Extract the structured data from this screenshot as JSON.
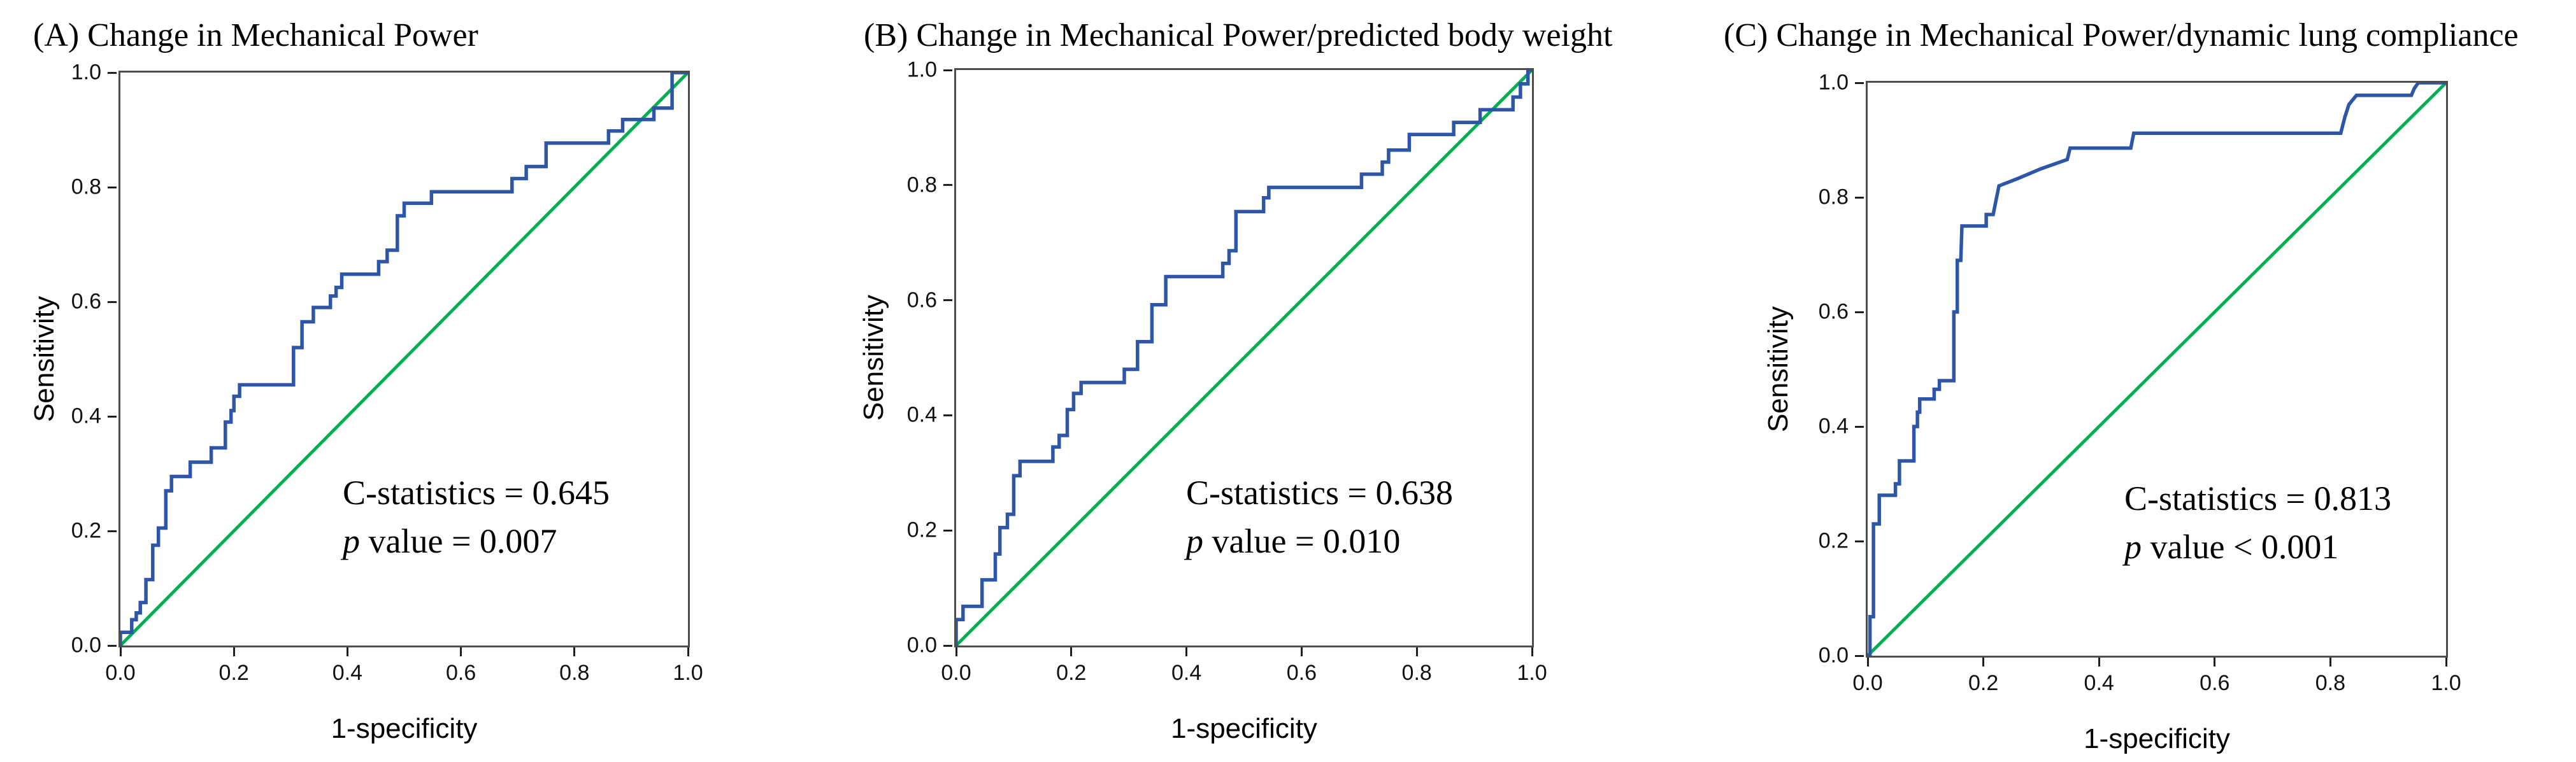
{
  "figure": {
    "description": "Three ROC curve panels comparing change in mechanical power metrics",
    "background": "#ffffff"
  },
  "colors": {
    "roc_curve": "#2e56a8",
    "reference_line": "#00b050",
    "plot_border": "#4d4d4d",
    "text": "#000000"
  },
  "chart_data": [
    {
      "type": "line",
      "panel": "A",
      "title": "(A) Change in Mechanical Power",
      "xlabel": "1-specificity",
      "ylabel": "Sensitivity",
      "xlim": [
        0.0,
        1.0
      ],
      "ylim": [
        0.0,
        1.0
      ],
      "grid": false,
      "legend": false,
      "x_ticks": [
        0.0,
        0.2,
        0.4,
        0.6,
        0.8,
        1.0
      ],
      "y_ticks": [
        0.0,
        0.2,
        0.4,
        0.6,
        0.8,
        1.0
      ],
      "x_tick_labels": [
        "0.0",
        "0.2",
        "0.4",
        "0.6",
        "0.8",
        "1.0"
      ],
      "y_tick_labels": [
        "0.0",
        "0.2",
        "0.4",
        "0.6",
        "0.8",
        "1.0"
      ],
      "annotation": {
        "line1": "C-statistics = 0.645",
        "p_italic": "p",
        "p_rest": " value = 0.007"
      },
      "series": [
        {
          "name": "Reference line",
          "role": "reference",
          "color": "#00b050",
          "points": [
            [
              0,
              0
            ],
            [
              1,
              1
            ]
          ]
        },
        {
          "name": "ROC curve",
          "role": "roc",
          "color": "#2e56a8",
          "points": [
            [
              0,
              0
            ],
            [
              0,
              0.023
            ],
            [
              0.02,
              0.023
            ],
            [
              0.02,
              0.045
            ],
            [
              0.028,
              0.045
            ],
            [
              0.028,
              0.057
            ],
            [
              0.035,
              0.057
            ],
            [
              0.035,
              0.075
            ],
            [
              0.045,
              0.075
            ],
            [
              0.045,
              0.115
            ],
            [
              0.057,
              0.115
            ],
            [
              0.057,
              0.175
            ],
            [
              0.067,
              0.175
            ],
            [
              0.067,
              0.205
            ],
            [
              0.08,
              0.205
            ],
            [
              0.08,
              0.27
            ],
            [
              0.09,
              0.27
            ],
            [
              0.09,
              0.295
            ],
            [
              0.123,
              0.295
            ],
            [
              0.123,
              0.32
            ],
            [
              0.16,
              0.32
            ],
            [
              0.16,
              0.345
            ],
            [
              0.185,
              0.345
            ],
            [
              0.185,
              0.39
            ],
            [
              0.195,
              0.39
            ],
            [
              0.195,
              0.41
            ],
            [
              0.2,
              0.41
            ],
            [
              0.2,
              0.435
            ],
            [
              0.21,
              0.435
            ],
            [
              0.21,
              0.455
            ],
            [
              0.305,
              0.455
            ],
            [
              0.305,
              0.52
            ],
            [
              0.32,
              0.52
            ],
            [
              0.32,
              0.565
            ],
            [
              0.34,
              0.565
            ],
            [
              0.34,
              0.59
            ],
            [
              0.37,
              0.59
            ],
            [
              0.37,
              0.61
            ],
            [
              0.38,
              0.61
            ],
            [
              0.38,
              0.625
            ],
            [
              0.39,
              0.625
            ],
            [
              0.39,
              0.648
            ],
            [
              0.455,
              0.648
            ],
            [
              0.455,
              0.67
            ],
            [
              0.47,
              0.67
            ],
            [
              0.47,
              0.69
            ],
            [
              0.488,
              0.69
            ],
            [
              0.488,
              0.75
            ],
            [
              0.5,
              0.75
            ],
            [
              0.5,
              0.772
            ],
            [
              0.548,
              0.772
            ],
            [
              0.548,
              0.792
            ],
            [
              0.69,
              0.792
            ],
            [
              0.69,
              0.815
            ],
            [
              0.715,
              0.815
            ],
            [
              0.715,
              0.836
            ],
            [
              0.75,
              0.836
            ],
            [
              0.75,
              0.877
            ],
            [
              0.86,
              0.877
            ],
            [
              0.86,
              0.898
            ],
            [
              0.885,
              0.898
            ],
            [
              0.885,
              0.918
            ],
            [
              0.94,
              0.918
            ],
            [
              0.94,
              0.938
            ],
            [
              0.972,
              0.938
            ],
            [
              0.972,
              1
            ],
            [
              1,
              1
            ]
          ]
        }
      ]
    },
    {
      "type": "line",
      "panel": "B",
      "title": "(B) Change in Mechanical Power/predicted body weight",
      "xlabel": "1-specificity",
      "ylabel": "Sensitivity",
      "xlim": [
        0.0,
        1.0
      ],
      "ylim": [
        0.0,
        1.0
      ],
      "grid": false,
      "legend": false,
      "x_ticks": [
        0.0,
        0.2,
        0.4,
        0.6,
        0.8,
        1.0
      ],
      "y_ticks": [
        0.0,
        0.2,
        0.4,
        0.6,
        0.8,
        1.0
      ],
      "x_tick_labels": [
        "0.0",
        "0.2",
        "0.4",
        "0.6",
        "0.8",
        "1.0"
      ],
      "y_tick_labels": [
        "0.0",
        "0.2",
        "0.4",
        "0.6",
        "0.8",
        "1.0"
      ],
      "annotation": {
        "line1": "C-statistics = 0.638",
        "p_italic": "p",
        "p_rest": " value = 0.010"
      },
      "series": [
        {
          "name": "Reference line",
          "role": "reference",
          "color": "#00b050",
          "points": [
            [
              0,
              0
            ],
            [
              1,
              1
            ]
          ]
        },
        {
          "name": "ROC curve",
          "role": "roc",
          "color": "#2e56a8",
          "points": [
            [
              0,
              0
            ],
            [
              0,
              0.045
            ],
            [
              0.012,
              0.045
            ],
            [
              0.012,
              0.068
            ],
            [
              0.045,
              0.068
            ],
            [
              0.045,
              0.114
            ],
            [
              0.068,
              0.114
            ],
            [
              0.068,
              0.159
            ],
            [
              0.076,
              0.159
            ],
            [
              0.076,
              0.205
            ],
            [
              0.089,
              0.205
            ],
            [
              0.089,
              0.228
            ],
            [
              0.1,
              0.228
            ],
            [
              0.1,
              0.295
            ],
            [
              0.111,
              0.295
            ],
            [
              0.111,
              0.32
            ],
            [
              0.168,
              0.32
            ],
            [
              0.168,
              0.345
            ],
            [
              0.179,
              0.345
            ],
            [
              0.179,
              0.365
            ],
            [
              0.193,
              0.365
            ],
            [
              0.193,
              0.41
            ],
            [
              0.204,
              0.41
            ],
            [
              0.204,
              0.438
            ],
            [
              0.217,
              0.438
            ],
            [
              0.217,
              0.457
            ],
            [
              0.292,
              0.457
            ],
            [
              0.292,
              0.48
            ],
            [
              0.315,
              0.48
            ],
            [
              0.315,
              0.528
            ],
            [
              0.34,
              0.528
            ],
            [
              0.34,
              0.592
            ],
            [
              0.364,
              0.592
            ],
            [
              0.364,
              0.641
            ],
            [
              0.463,
              0.641
            ],
            [
              0.463,
              0.664
            ],
            [
              0.474,
              0.664
            ],
            [
              0.474,
              0.686
            ],
            [
              0.486,
              0.686
            ],
            [
              0.486,
              0.754
            ],
            [
              0.534,
              0.754
            ],
            [
              0.534,
              0.778
            ],
            [
              0.543,
              0.778
            ],
            [
              0.543,
              0.796
            ],
            [
              0.704,
              0.796
            ],
            [
              0.704,
              0.819
            ],
            [
              0.74,
              0.819
            ],
            [
              0.74,
              0.84
            ],
            [
              0.751,
              0.84
            ],
            [
              0.751,
              0.861
            ],
            [
              0.787,
              0.861
            ],
            [
              0.787,
              0.888
            ],
            [
              0.864,
              0.888
            ],
            [
              0.864,
              0.909
            ],
            [
              0.91,
              0.909
            ],
            [
              0.91,
              0.931
            ],
            [
              0.967,
              0.931
            ],
            [
              0.967,
              0.953
            ],
            [
              0.98,
              0.953
            ],
            [
              0.98,
              0.976
            ],
            [
              0.993,
              0.976
            ],
            [
              0.993,
              1
            ],
            [
              1,
              1
            ]
          ]
        }
      ]
    },
    {
      "type": "line",
      "panel": "C",
      "title": "(C) Change in Mechanical Power/dynamic lung compliance",
      "xlabel": "1-specificity",
      "ylabel": "Sensitivity",
      "xlim": [
        0.0,
        1.0
      ],
      "ylim": [
        0.0,
        1.0
      ],
      "grid": false,
      "legend": false,
      "x_ticks": [
        0.0,
        0.2,
        0.4,
        0.6,
        0.8,
        1.0
      ],
      "y_ticks": [
        0.0,
        0.2,
        0.4,
        0.6,
        0.8,
        1.0
      ],
      "x_tick_labels": [
        "0.0",
        "0.2",
        "0.4",
        "0.6",
        "0.8",
        "1.0"
      ],
      "y_tick_labels": [
        "0.0",
        "0.2",
        "0.4",
        "0.6",
        "0.8",
        "1.0"
      ],
      "annotation": {
        "line1": "C-statistics = 0.813",
        "p_italic": "p",
        "p_rest": " value < 0.001"
      },
      "series": [
        {
          "name": "Reference line",
          "role": "reference",
          "color": "#00b050",
          "points": [
            [
              0,
              0
            ],
            [
              1,
              1
            ]
          ]
        },
        {
          "name": "ROC curve",
          "role": "roc",
          "color": "#2e56a8",
          "points": [
            [
              0,
              0
            ],
            [
              0.004,
              0
            ],
            [
              0.004,
              0.068
            ],
            [
              0.01,
              0.068
            ],
            [
              0.01,
              0.23
            ],
            [
              0.02,
              0.23
            ],
            [
              0.02,
              0.28
            ],
            [
              0.048,
              0.28
            ],
            [
              0.048,
              0.3
            ],
            [
              0.055,
              0.3
            ],
            [
              0.055,
              0.34
            ],
            [
              0.08,
              0.34
            ],
            [
              0.08,
              0.4
            ],
            [
              0.086,
              0.4
            ],
            [
              0.086,
              0.425
            ],
            [
              0.09,
              0.425
            ],
            [
              0.09,
              0.448
            ],
            [
              0.115,
              0.448
            ],
            [
              0.115,
              0.465
            ],
            [
              0.124,
              0.465
            ],
            [
              0.124,
              0.48
            ],
            [
              0.149,
              0.48
            ],
            [
              0.149,
              0.6
            ],
            [
              0.155,
              0.6
            ],
            [
              0.155,
              0.69
            ],
            [
              0.161,
              0.69
            ],
            [
              0.163,
              0.75
            ],
            [
              0.205,
              0.75
            ],
            [
              0.205,
              0.77
            ],
            [
              0.217,
              0.77
            ],
            [
              0.227,
              0.82
            ],
            [
              0.26,
              0.833
            ],
            [
              0.3,
              0.85
            ],
            [
              0.345,
              0.866
            ],
            [
              0.35,
              0.886
            ],
            [
              0.455,
              0.886
            ],
            [
              0.46,
              0.912
            ],
            [
              0.818,
              0.912
            ],
            [
              0.825,
              0.94
            ],
            [
              0.832,
              0.962
            ],
            [
              0.845,
              0.978
            ],
            [
              0.94,
              0.978
            ],
            [
              0.945,
              0.99
            ],
            [
              0.952,
              1
            ],
            [
              1,
              1
            ]
          ]
        }
      ]
    }
  ]
}
